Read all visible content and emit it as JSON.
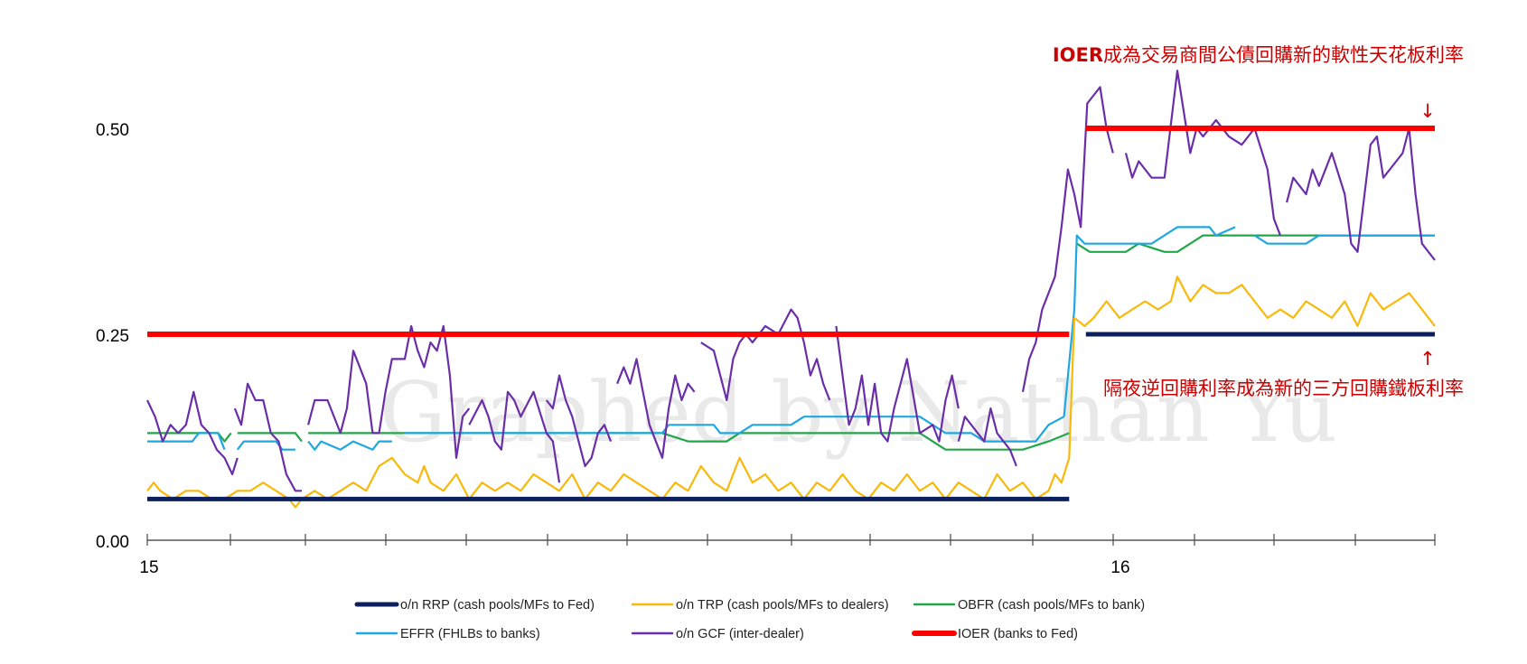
{
  "chart_data": {
    "type": "line",
    "x_ticks": [
      "15",
      "16"
    ],
    "y_ticks": [
      "0.00",
      "0.25",
      "0.50"
    ],
    "ylim": [
      0,
      0.5
    ],
    "watermark": "Graphed by Nathan Yu",
    "annotations": {
      "top_bold": "IOER",
      "top_rest": "成為交易商間公債回購新的軟性天花板利率",
      "bottom": "隔夜逆回購利率成為新的三方回購鐵板利率",
      "arrow_down": "↓",
      "arrow_up": "↑"
    },
    "series": [
      {
        "name": "o/n RRP (cash pools/MFs to Fed)",
        "color": "#0d1f5c",
        "width": 5,
        "segments": [
          {
            "x": [
              0.0,
              0.716
            ],
            "y": [
              0.05,
              0.05
            ]
          },
          {
            "x": [
              0.729,
              1.0
            ],
            "y": [
              0.25,
              0.25
            ]
          }
        ]
      },
      {
        "name": "IOER (banks to Fed)",
        "color": "#ff0000",
        "width": 6,
        "segments": [
          {
            "x": [
              0.0,
              0.716
            ],
            "y": [
              0.25,
              0.25
            ]
          },
          {
            "x": [
              0.729,
              1.0
            ],
            "y": [
              0.5,
              0.5
            ]
          }
        ]
      },
      {
        "name": "OBFR (cash pools/MFs to bank)",
        "color": "#22a64a",
        "width": 2.2,
        "segments": [
          {
            "x": [
              0.0,
              0.055,
              0.06,
              0.065
            ],
            "y": [
              0.13,
              0.13,
              0.12,
              0.13
            ]
          },
          {
            "x": [
              0.07,
              0.115,
              0.12
            ],
            "y": [
              0.13,
              0.13,
              0.12
            ]
          },
          {
            "x": [
              0.125,
              0.17,
              0.2,
              0.4,
              0.42,
              0.45,
              0.46,
              0.6,
              0.62,
              0.68,
              0.7,
              0.716
            ],
            "y": [
              0.13,
              0.13,
              0.13,
              0.13,
              0.12,
              0.12,
              0.13,
              0.13,
              0.11,
              0.11,
              0.12,
              0.13
            ]
          },
          {
            "x": [
              0.722,
              0.732,
              0.76,
              0.77,
              0.79,
              0.8,
              0.82,
              0.88,
              0.9,
              1.0
            ],
            "y": [
              0.36,
              0.35,
              0.35,
              0.36,
              0.35,
              0.35,
              0.37,
              0.37,
              0.37,
              0.37
            ]
          }
        ]
      },
      {
        "name": "EFFR (FHLBs to banks)",
        "color": "#1ea7e1",
        "width": 2.2,
        "segments": [
          {
            "x": [
              0.0,
              0.035,
              0.04,
              0.055,
              0.06
            ],
            "y": [
              0.12,
              0.12,
              0.13,
              0.13,
              0.11
            ]
          },
          {
            "x": [
              0.07,
              0.075,
              0.08,
              0.1,
              0.105,
              0.115
            ],
            "y": [
              0.11,
              0.12,
              0.12,
              0.12,
              0.11,
              0.11
            ]
          },
          {
            "x": [
              0.125,
              0.13,
              0.135,
              0.15,
              0.16,
              0.175,
              0.18,
              0.19
            ],
            "y": [
              0.12,
              0.11,
              0.12,
              0.11,
              0.12,
              0.11,
              0.12,
              0.12
            ]
          },
          {
            "x": [
              0.2,
              0.4,
              0.405,
              0.44,
              0.445,
              0.46,
              0.47,
              0.5,
              0.51,
              0.6,
              0.62,
              0.64,
              0.65,
              0.69,
              0.7,
              0.712
            ],
            "y": [
              0.13,
              0.13,
              0.14,
              0.14,
              0.13,
              0.13,
              0.14,
              0.14,
              0.15,
              0.15,
              0.13,
              0.13,
              0.12,
              0.12,
              0.14,
              0.15
            ]
          },
          {
            "x": [
              0.712,
              0.72,
              0.722,
              0.728,
              0.735,
              0.76,
              0.78,
              0.79,
              0.8,
              0.825,
              0.83,
              0.845
            ],
            "y": [
              0.15,
              0.28,
              0.37,
              0.36,
              0.36,
              0.36,
              0.36,
              0.37,
              0.38,
              0.38,
              0.37,
              0.38
            ]
          },
          {
            "x": [
              0.86,
              0.87,
              0.9,
              0.91,
              0.95,
              1.0
            ],
            "y": [
              0.37,
              0.36,
              0.36,
              0.37,
              0.37,
              0.37
            ]
          }
        ]
      },
      {
        "name": "o/n TRP (cash pools/MFs to dealers)",
        "color": "#f8b90a",
        "width": 2.2,
        "segments": [
          {
            "x": [
              0.0,
              0.005,
              0.01,
              0.02,
              0.03,
              0.04,
              0.05,
              0.06,
              0.07,
              0.08,
              0.09,
              0.1,
              0.11,
              0.115,
              0.12,
              0.13,
              0.14,
              0.15,
              0.16,
              0.17,
              0.18,
              0.19,
              0.2,
              0.21,
              0.215,
              0.22,
              0.23,
              0.24,
              0.25,
              0.26,
              0.27,
              0.28,
              0.29,
              0.3,
              0.31,
              0.32,
              0.33,
              0.34,
              0.35,
              0.36,
              0.37,
              0.38,
              0.39,
              0.4,
              0.41,
              0.42,
              0.43,
              0.44,
              0.45,
              0.46,
              0.47,
              0.48,
              0.49,
              0.5,
              0.51,
              0.52,
              0.53,
              0.54,
              0.55,
              0.56,
              0.57,
              0.58,
              0.59,
              0.6,
              0.61,
              0.62,
              0.63,
              0.64,
              0.65,
              0.66,
              0.67,
              0.68,
              0.69,
              0.7,
              0.705,
              0.71,
              0.716,
              0.72
            ],
            "y": [
              0.06,
              0.07,
              0.06,
              0.05,
              0.06,
              0.06,
              0.05,
              0.05,
              0.06,
              0.06,
              0.07,
              0.06,
              0.05,
              0.04,
              0.05,
              0.06,
              0.05,
              0.06,
              0.07,
              0.06,
              0.09,
              0.1,
              0.08,
              0.07,
              0.09,
              0.07,
              0.06,
              0.08,
              0.05,
              0.07,
              0.06,
              0.07,
              0.06,
              0.08,
              0.07,
              0.06,
              0.08,
              0.05,
              0.07,
              0.06,
              0.08,
              0.07,
              0.06,
              0.05,
              0.07,
              0.06,
              0.09,
              0.07,
              0.06,
              0.1,
              0.07,
              0.08,
              0.06,
              0.07,
              0.05,
              0.07,
              0.06,
              0.08,
              0.06,
              0.05,
              0.07,
              0.06,
              0.08,
              0.06,
              0.07,
              0.05,
              0.07,
              0.06,
              0.05,
              0.08,
              0.06,
              0.07,
              0.05,
              0.06,
              0.08,
              0.07,
              0.1,
              0.27
            ]
          },
          {
            "x": [
              0.72,
              0.728,
              0.735,
              0.745,
              0.755,
              0.765,
              0.775,
              0.785,
              0.795,
              0.8,
              0.81,
              0.82,
              0.83,
              0.84,
              0.85,
              0.86,
              0.87,
              0.88,
              0.89,
              0.9,
              0.91,
              0.92,
              0.93,
              0.94,
              0.95,
              0.96,
              0.97,
              0.98,
              0.99,
              1.0
            ],
            "y": [
              0.27,
              0.26,
              0.27,
              0.29,
              0.27,
              0.28,
              0.29,
              0.28,
              0.29,
              0.32,
              0.29,
              0.31,
              0.3,
              0.3,
              0.31,
              0.29,
              0.27,
              0.28,
              0.27,
              0.29,
              0.28,
              0.27,
              0.29,
              0.26,
              0.3,
              0.28,
              0.29,
              0.3,
              0.28,
              0.26
            ]
          }
        ]
      },
      {
        "name": "o/n GCF (inter-dealer)",
        "color": "#6a2fa8",
        "width": 2.2,
        "segments": [
          {
            "x": [
              0.0,
              0.006,
              0.012,
              0.018,
              0.024,
              0.03,
              0.036,
              0.042,
              0.048,
              0.054,
              0.06,
              0.066,
              0.07
            ],
            "y": [
              0.17,
              0.15,
              0.12,
              0.14,
              0.13,
              0.14,
              0.18,
              0.14,
              0.13,
              0.11,
              0.1,
              0.08,
              0.1
            ]
          },
          {
            "x": [
              0.068,
              0.073,
              0.078,
              0.084,
              0.09,
              0.096,
              0.102,
              0.108,
              0.115,
              0.12
            ],
            "y": [
              0.16,
              0.14,
              0.19,
              0.17,
              0.17,
              0.13,
              0.12,
              0.08,
              0.06,
              0.06
            ]
          },
          {
            "x": [
              0.125,
              0.13,
              0.14,
              0.15,
              0.155,
              0.16,
              0.17,
              0.175,
              0.18,
              0.185,
              0.19,
              0.2,
              0.205,
              0.21,
              0.215,
              0.22,
              0.225,
              0.23,
              0.235,
              0.24,
              0.245,
              0.25
            ],
            "y": [
              0.14,
              0.17,
              0.17,
              0.13,
              0.16,
              0.23,
              0.19,
              0.13,
              0.13,
              0.18,
              0.22,
              0.22,
              0.26,
              0.23,
              0.21,
              0.24,
              0.23,
              0.26,
              0.2,
              0.1,
              0.15,
              0.16
            ]
          },
          {
            "x": [
              0.25,
              0.26,
              0.265,
              0.27,
              0.275,
              0.28,
              0.285,
              0.29,
              0.3,
              0.31,
              0.315,
              0.32
            ],
            "y": [
              0.14,
              0.17,
              0.15,
              0.12,
              0.11,
              0.18,
              0.17,
              0.15,
              0.18,
              0.13,
              0.12,
              0.07
            ]
          },
          {
            "x": [
              0.31,
              0.315,
              0.32,
              0.325,
              0.33,
              0.335,
              0.34,
              0.345,
              0.35,
              0.355,
              0.36
            ],
            "y": [
              0.17,
              0.16,
              0.2,
              0.17,
              0.15,
              0.12,
              0.09,
              0.1,
              0.13,
              0.14,
              0.12
            ]
          },
          {
            "x": [
              0.365,
              0.37,
              0.375,
              0.38,
              0.385,
              0.39,
              0.4,
              0.405,
              0.41,
              0.415,
              0.42,
              0.425
            ],
            "y": [
              0.19,
              0.21,
              0.19,
              0.22,
              0.18,
              0.14,
              0.1,
              0.16,
              0.2,
              0.17,
              0.19,
              0.18
            ]
          },
          {
            "x": [
              0.43,
              0.44,
              0.45,
              0.455,
              0.46,
              0.465,
              0.47,
              0.48,
              0.49,
              0.5,
              0.505,
              0.51,
              0.515,
              0.52,
              0.525,
              0.53
            ],
            "y": [
              0.24,
              0.23,
              0.17,
              0.22,
              0.24,
              0.25,
              0.24,
              0.26,
              0.25,
              0.28,
              0.27,
              0.24,
              0.2,
              0.22,
              0.19,
              0.17
            ]
          },
          {
            "x": [
              0.535,
              0.54,
              0.545,
              0.55,
              0.555,
              0.56,
              0.565,
              0.57,
              0.575,
              0.58,
              0.59,
              0.6,
              0.61,
              0.615,
              0.62,
              0.625,
              0.63
            ],
            "y": [
              0.26,
              0.2,
              0.14,
              0.16,
              0.2,
              0.14,
              0.19,
              0.13,
              0.12,
              0.16,
              0.22,
              0.13,
              0.14,
              0.12,
              0.17,
              0.2,
              0.16
            ]
          },
          {
            "x": [
              0.63,
              0.635,
              0.64,
              0.645,
              0.65,
              0.655,
              0.66,
              0.665,
              0.67,
              0.675
            ],
            "y": [
              0.12,
              0.15,
              0.14,
              0.13,
              0.12,
              0.16,
              0.13,
              0.12,
              0.11,
              0.09
            ]
          },
          {
            "x": [
              0.68,
              0.685,
              0.69,
              0.695,
              0.7,
              0.705,
              0.71,
              0.715,
              0.72,
              0.725,
              0.73,
              0.735,
              0.74,
              0.745,
              0.75
            ],
            "y": [
              0.18,
              0.22,
              0.24,
              0.28,
              0.3,
              0.32,
              0.38,
              0.45,
              0.42,
              0.38,
              0.53,
              0.54,
              0.55,
              0.5,
              0.47
            ]
          },
          {
            "x": [
              0.76,
              0.765,
              0.77,
              0.78,
              0.79,
              0.8,
              0.81,
              0.815,
              0.82,
              0.83,
              0.84,
              0.85,
              0.86,
              0.87,
              0.875,
              0.88
            ],
            "y": [
              0.47,
              0.44,
              0.46,
              0.44,
              0.44,
              0.57,
              0.47,
              0.5,
              0.49,
              0.51,
              0.49,
              0.48,
              0.5,
              0.45,
              0.39,
              0.37
            ]
          },
          {
            "x": [
              0.885,
              0.89,
              0.9,
              0.905,
              0.91,
              0.92,
              0.93,
              0.935,
              0.94,
              0.95,
              0.955,
              0.96,
              0.97,
              0.975,
              0.98,
              0.985,
              0.99,
              1.0
            ],
            "y": [
              0.41,
              0.44,
              0.42,
              0.45,
              0.43,
              0.47,
              0.42,
              0.36,
              0.35,
              0.48,
              0.49,
              0.44,
              0.46,
              0.47,
              0.5,
              0.42,
              0.36,
              0.34
            ]
          }
        ]
      }
    ]
  }
}
